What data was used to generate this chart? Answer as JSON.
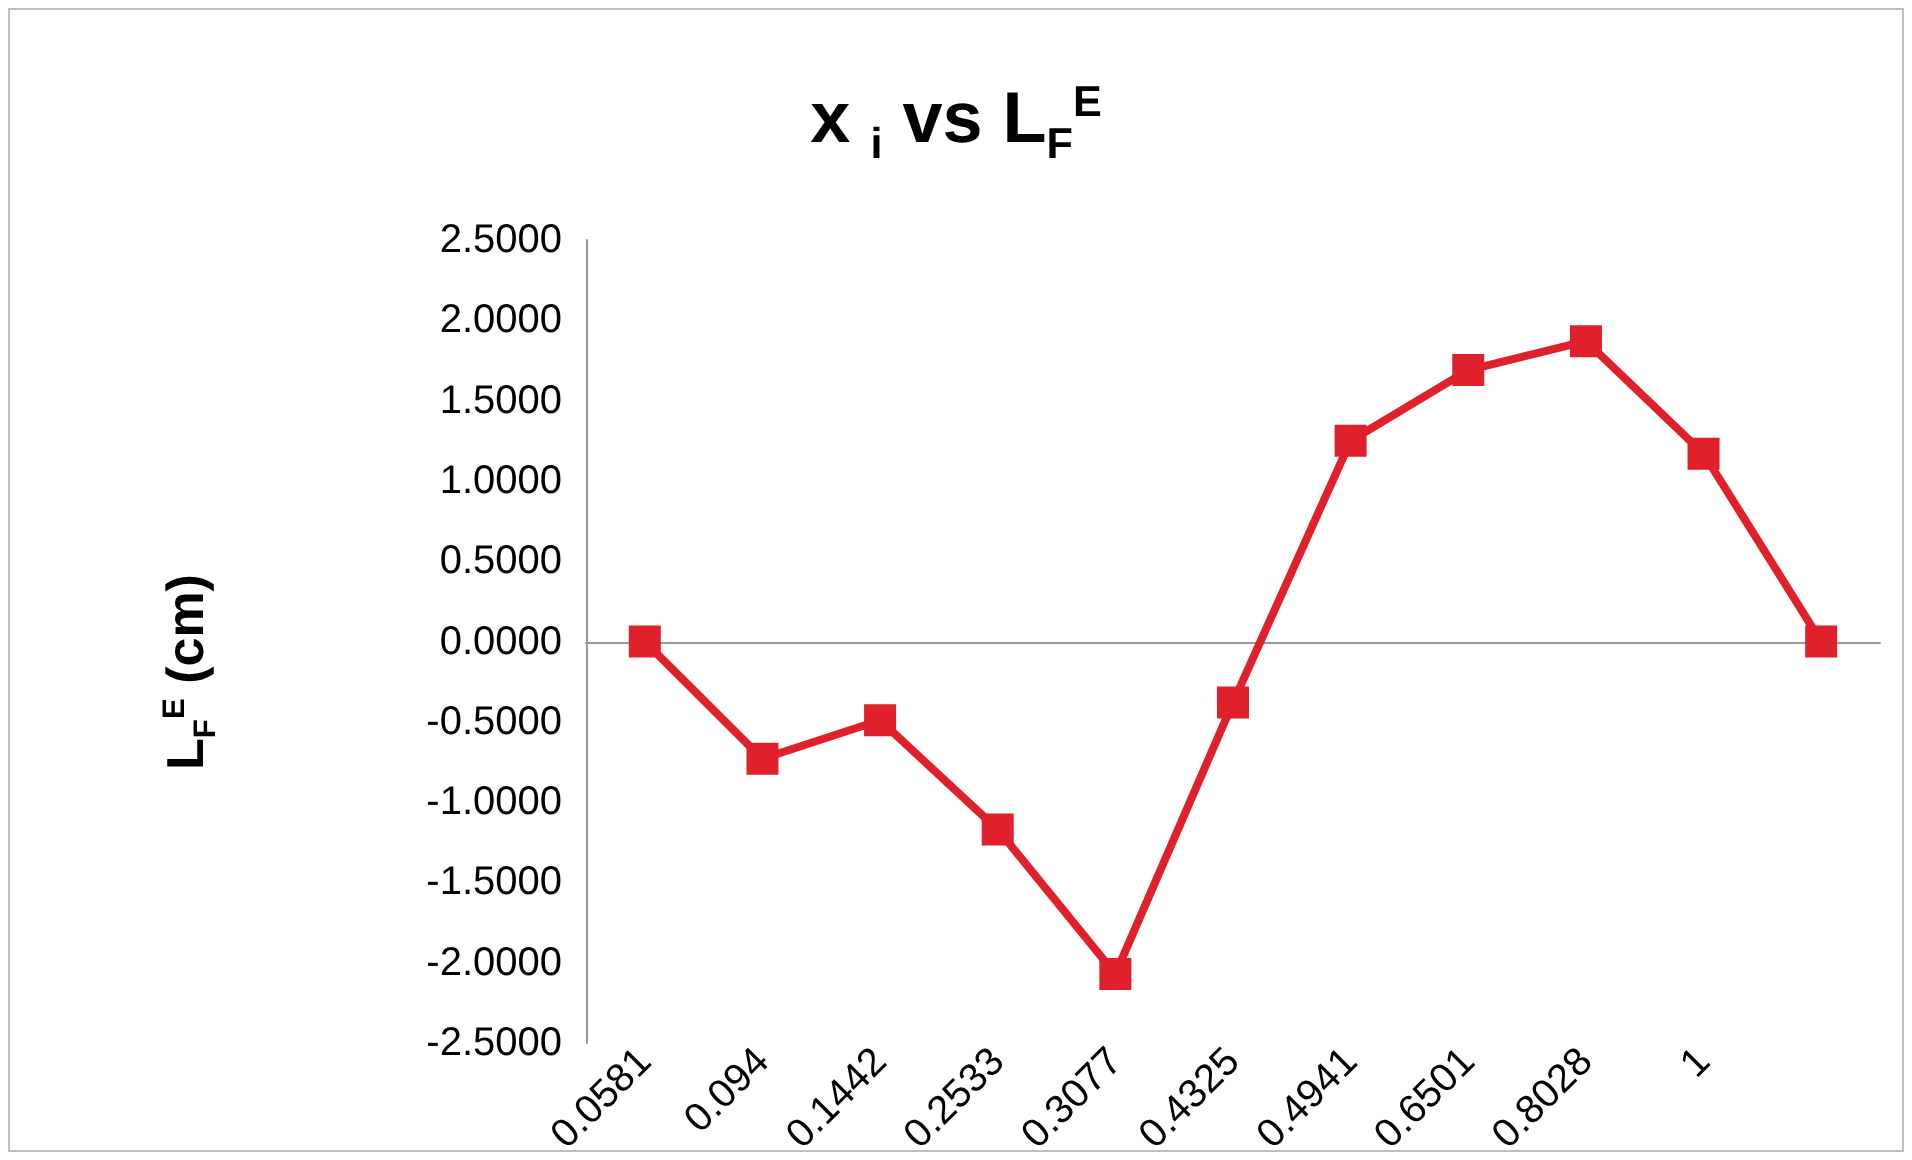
{
  "chart_data": {
    "type": "line",
    "title": "x $_{i}$ vs L$_{F}$$^{E}$",
    "ylabel": "L$_{F}$$^{E}$ (cm)",
    "categories": [
      "0.0581",
      "0.094",
      "0.1442",
      "0.2533",
      "0.3077",
      "0.4325",
      "0.4941",
      "0.6501",
      "0.8028",
      "1",
      null
    ],
    "series": [
      {
        "color": "#e0202a",
        "values": [
          0,
          -0.73,
          -0.49,
          -1.17,
          -2.07,
          -0.38,
          1.25,
          1.69,
          1.87,
          1.17,
          0
        ]
      }
    ],
    "ylim": [
      -2.5,
      2.5
    ],
    "yticks": [
      {
        "value": -2.5,
        "label": "-2.5000"
      },
      {
        "value": -2,
        "label": "-2.0000"
      },
      {
        "value": -1.5,
        "label": "-1.5000"
      },
      {
        "value": -1,
        "label": "-1.0000"
      },
      {
        "value": -0.5,
        "label": "-0.5000"
      },
      {
        "value": 0,
        "label": "0.0000"
      },
      {
        "value": 0.5,
        "label": "0.5000"
      },
      {
        "value": 1,
        "label": "1.0000"
      },
      {
        "value": 1.5,
        "label": "1.5000"
      },
      {
        "value": 2,
        "label": "2.0000"
      },
      {
        "value": 2.5,
        "label": "2.5000"
      }
    ],
    "marker": "square",
    "line_style": "solid"
  }
}
